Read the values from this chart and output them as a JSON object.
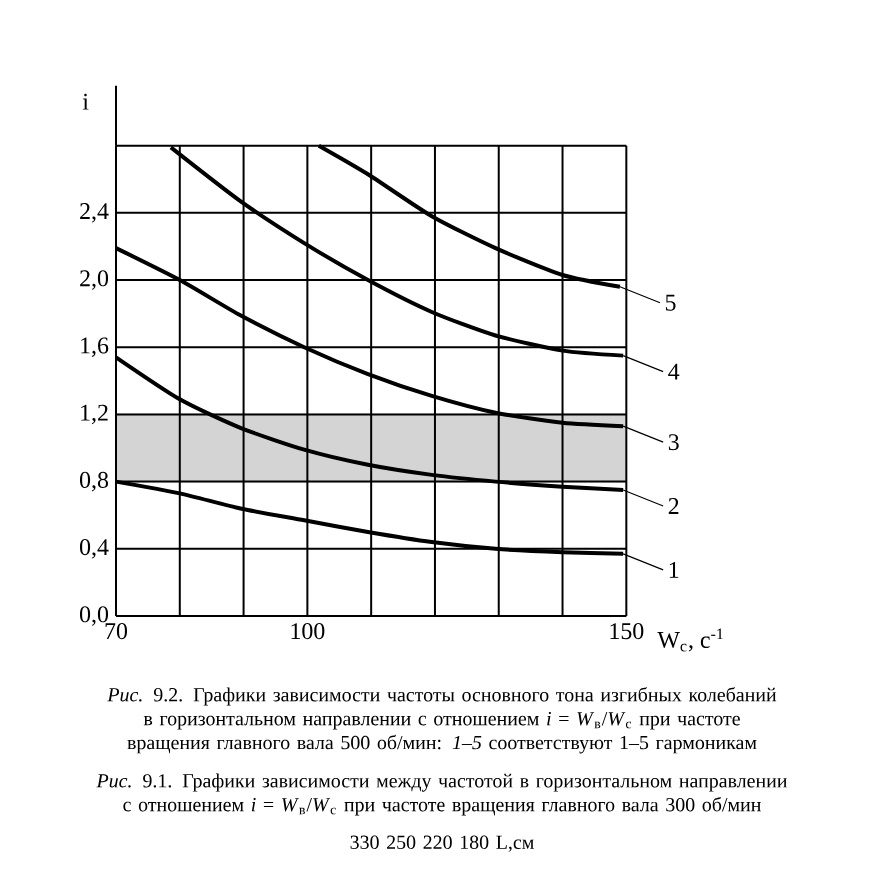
{
  "chart_data": {
    "type": "line",
    "xlabel": "W$_{с}$, с$^{-1}$",
    "ylabel": "i",
    "legend": "right",
    "series": [
      {
        "name": "1",
        "color": "#000000",
        "x": [
          70,
          80,
          89.5,
          99.5,
          109.5,
          119.5,
          129.5,
          140,
          149.5
        ],
        "values": [
          0.8,
          0.73,
          0.64,
          0.57,
          0.5,
          0.44,
          0.4,
          0.38,
          0.37
        ]
      },
      {
        "name": "2",
        "color": "#000000",
        "x": [
          70,
          80,
          89.5,
          99.5,
          109.5,
          119.5,
          129.5,
          140,
          149.5
        ],
        "values": [
          1.54,
          1.29,
          1.12,
          0.99,
          0.9,
          0.84,
          0.8,
          0.77,
          0.75
        ]
      },
      {
        "name": "3",
        "color": "#000000",
        "x": [
          70,
          80,
          89.5,
          99.5,
          109.5,
          119.5,
          129.5,
          140,
          149.5
        ],
        "values": [
          2.19,
          2.0,
          1.79,
          1.6,
          1.44,
          1.31,
          1.21,
          1.15,
          1.13
        ]
      },
      {
        "name": "4",
        "color": "#000000",
        "x": [
          78.6,
          89.5,
          99.5,
          109.5,
          119.5,
          129.5,
          140,
          149.5
        ],
        "values": [
          2.79,
          2.47,
          2.22,
          2.0,
          1.81,
          1.67,
          1.58,
          1.55
        ]
      },
      {
        "name": "5",
        "color": "#000000",
        "x": [
          101.8,
          109.5,
          119.5,
          129.5,
          140,
          149
        ],
        "values": [
          2.8,
          2.63,
          2.38,
          2.19,
          2.03,
          1.96
        ]
      }
    ],
    "xlim": [
      70,
      150
    ],
    "xticks": [
      70,
      {
        "value": 80,
        "label": null
      },
      {
        "value": 90,
        "label": null
      },
      100,
      {
        "value": 110,
        "label": null
      },
      {
        "value": 120,
        "label": null
      },
      {
        "value": 130,
        "label": null
      },
      {
        "value": 140,
        "label": null
      },
      150
    ],
    "ylim": [
      0,
      2.8
    ],
    "yticks": [
      {
        "value": 0,
        "label": "0,0"
      },
      {
        "value": 0.4,
        "label": "0,4"
      },
      {
        "value": 0.8,
        "label": "0,8"
      },
      {
        "value": 1.2,
        "label": "1,2"
      },
      {
        "value": 1.6,
        "label": "1,6"
      },
      {
        "value": 2.0,
        "label": "2,0"
      },
      {
        "value": 2.4,
        "label": "2,4"
      },
      {
        "value": 2.8,
        "label": null
      }
    ],
    "grid": true,
    "bands": [
      {
        "axis": "y",
        "from": 0.8,
        "to": 1.2,
        "color": "#d4d4d4"
      }
    ],
    "annotations": [
      "*Рис.* 9.2. Графики зависимости частоты основного тона изгибных колебаний в горизонтальном направлении с отношением *i* = *W*$_{в}$/*W*$_{с}$ при частоте вращения главного вала 500 об/мин: *1–5* соответствуют 1–5 гармоникам",
      "*Рис.* 9.1. Графики зависимости между частотой в горизонтальном направлении с отношением *i* = *W*$_{в}$/*W*$_{с}$ при частоте вращения главного вала 300 об/мин",
      "330   250   220   180 L,см"
    ]
  }
}
